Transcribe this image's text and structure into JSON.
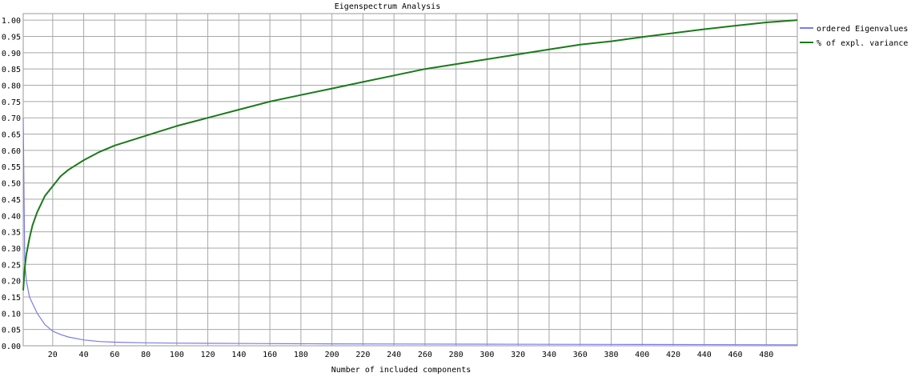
{
  "chart_data": {
    "type": "line",
    "title": "Eigenspectrum Analysis",
    "xlabel": "Number of included components",
    "ylabel": "",
    "xlim": [
      1,
      500
    ],
    "ylim": [
      0,
      1.02
    ],
    "x_ticks": [
      "20",
      "40",
      "60",
      "80",
      "100",
      "120",
      "140",
      "160",
      "180",
      "200",
      "220",
      "240",
      "260",
      "280",
      "300",
      "320",
      "340",
      "360",
      "380",
      "400",
      "420",
      "440",
      "460",
      "480"
    ],
    "y_ticks": [
      "0.00",
      "0.05",
      "0.10",
      "0.15",
      "0.20",
      "0.25",
      "0.30",
      "0.35",
      "0.40",
      "0.45",
      "0.50",
      "0.55",
      "0.60",
      "0.65",
      "0.70",
      "0.75",
      "0.80",
      "0.85",
      "0.90",
      "0.95",
      "1.00"
    ],
    "grid": true,
    "legend_position": "right",
    "series": [
      {
        "name": "ordered Eigenvalues",
        "color": "#7b7be8",
        "x": [
          1,
          2,
          3,
          5,
          7,
          10,
          15,
          20,
          25,
          30,
          40,
          50,
          60,
          80,
          100,
          150,
          200,
          300,
          400,
          500
        ],
        "y": [
          0.7,
          0.26,
          0.2,
          0.15,
          0.13,
          0.1,
          0.065,
          0.045,
          0.035,
          0.027,
          0.018,
          0.013,
          0.011,
          0.009,
          0.008,
          0.007,
          0.006,
          0.005,
          0.004,
          0.003
        ]
      },
      {
        "name": "% of expl. variance",
        "color": "#1a7a1a",
        "x": [
          1,
          2,
          3,
          5,
          7,
          10,
          15,
          20,
          25,
          30,
          40,
          50,
          60,
          80,
          100,
          120,
          140,
          160,
          180,
          200,
          220,
          240,
          260,
          280,
          300,
          320,
          340,
          360,
          380,
          400,
          420,
          440,
          460,
          480,
          500
        ],
        "y": [
          0.17,
          0.24,
          0.28,
          0.33,
          0.37,
          0.41,
          0.46,
          0.49,
          0.52,
          0.54,
          0.57,
          0.595,
          0.615,
          0.645,
          0.675,
          0.7,
          0.725,
          0.75,
          0.77,
          0.79,
          0.81,
          0.83,
          0.85,
          0.865,
          0.88,
          0.895,
          0.91,
          0.925,
          0.935,
          0.948,
          0.96,
          0.972,
          0.983,
          0.993,
          1.0
        ]
      }
    ]
  }
}
